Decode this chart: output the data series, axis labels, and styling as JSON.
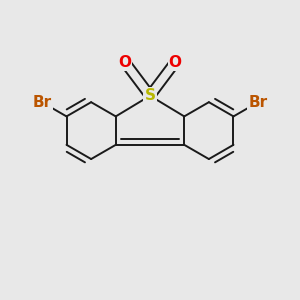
{
  "background_color": "#e8e8e8",
  "bond_color": "#1a1a1a",
  "S_color": "#b8b800",
  "O_color": "#ee0000",
  "Br_color": "#bb5500",
  "bond_lw": 1.4,
  "figsize": [
    3.0,
    3.0
  ],
  "dpi": 100,
  "xlim": [
    -1.15,
    1.15
  ],
  "ylim": [
    -0.95,
    0.95
  ],
  "font_size_SO": 11,
  "font_size_Br": 11
}
